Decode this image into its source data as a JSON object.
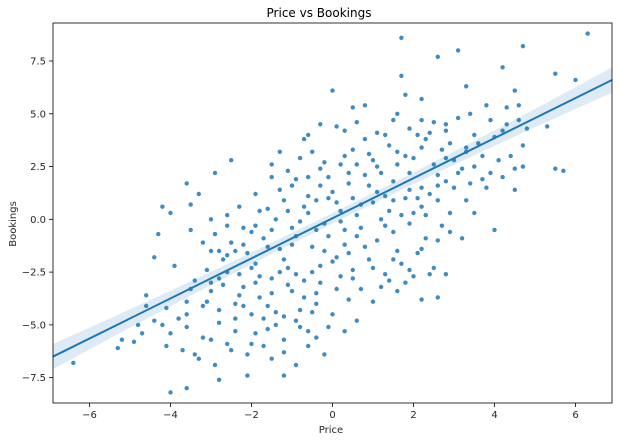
{
  "chart_data": {
    "type": "scatter",
    "title": "Price vs Bookings",
    "xlabel": "Price",
    "ylabel": "Bookings",
    "xlim": [
      -6.9,
      6.9
    ],
    "ylim": [
      -8.7,
      9.3
    ],
    "xticks": [
      -6,
      -4,
      -2,
      0,
      2,
      4,
      6
    ],
    "yticks": [
      -7.5,
      -5.0,
      -2.5,
      0.0,
      2.5,
      5.0,
      7.5
    ],
    "xtick_labels": [
      "−6",
      "−4",
      "−2",
      "0",
      "2",
      "4",
      "6"
    ],
    "ytick_labels": [
      "−7.5",
      "−5.0",
      "−2.5",
      "0.0",
      "2.5",
      "5.0",
      "7.5"
    ],
    "grid": false,
    "legend": "none",
    "colors": {
      "points": "#1f77b4",
      "line": "#1f77b4",
      "band": "#1f77b4"
    },
    "regression": {
      "x": [
        -6.9,
        6.9
      ],
      "y": [
        -6.5,
        6.6
      ],
      "ci_half_width_at_center": 0.25,
      "ci_half_width_at_edges": 0.6
    },
    "points": [
      [
        6.3,
        8.8
      ],
      [
        1.7,
        8.6
      ],
      [
        4.7,
        8.2
      ],
      [
        3.1,
        8.0
      ],
      [
        1.7,
        6.8
      ],
      [
        4.2,
        7.2
      ],
      [
        5.5,
        6.9
      ],
      [
        6.0,
        6.6
      ],
      [
        2.6,
        7.7
      ],
      [
        4.5,
        6.1
      ],
      [
        3.3,
        6.3
      ],
      [
        0.0,
        6.1
      ],
      [
        4.3,
        5.3
      ],
      [
        4.6,
        5.4
      ],
      [
        1.8,
        5.9
      ],
      [
        2.2,
        5.7
      ],
      [
        0.5,
        5.3
      ],
      [
        0.8,
        5.4
      ],
      [
        3.8,
        5.4
      ],
      [
        5.3,
        4.4
      ],
      [
        4.3,
        4.5
      ],
      [
        2.5,
        4.6
      ],
      [
        2.8,
        4.2
      ],
      [
        3.1,
        4.8
      ],
      [
        1.5,
        4.7
      ],
      [
        2.1,
        4.0
      ],
      [
        0.3,
        4.2
      ],
      [
        0.8,
        3.8
      ],
      [
        -1.3,
        3.2
      ],
      [
        -0.7,
        3.8
      ],
      [
        -0.3,
        4.5
      ],
      [
        -0.8,
        2.9
      ],
      [
        -0.3,
        2.4
      ],
      [
        0.2,
        2.6
      ],
      [
        0.5,
        3.3
      ],
      [
        1.0,
        2.8
      ],
      [
        1.4,
        3.5
      ],
      [
        1.8,
        3.0
      ],
      [
        2.3,
        3.8
      ],
      [
        2.7,
        3.3
      ],
      [
        3.3,
        3.2
      ],
      [
        3.6,
        3.6
      ],
      [
        4.0,
        3.9
      ],
      [
        4.7,
        3.5
      ],
      [
        5.7,
        2.3
      ],
      [
        5.5,
        2.4
      ],
      [
        4.7,
        2.5
      ],
      [
        4.2,
        2.0
      ],
      [
        3.7,
        1.9
      ],
      [
        3.1,
        2.2
      ],
      [
        2.6,
        2.1
      ],
      [
        2.2,
        1.5
      ],
      [
        1.9,
        2.2
      ],
      [
        1.5,
        1.8
      ],
      [
        1.1,
        1.3
      ],
      [
        0.8,
        2.1
      ],
      [
        0.4,
        1.7
      ],
      [
        0.0,
        1.3
      ],
      [
        -0.3,
        1.6
      ],
      [
        -0.6,
        1.1
      ],
      [
        -1.0,
        1.6
      ],
      [
        -1.5,
        2.0
      ],
      [
        -1.9,
        1.2
      ],
      [
        -2.3,
        0.6
      ],
      [
        -2.5,
        2.8
      ],
      [
        -2.9,
        2.2
      ],
      [
        -3.3,
        1.2
      ],
      [
        -3.6,
        1.7
      ],
      [
        -4.2,
        0.6
      ],
      [
        -4.0,
        0.3
      ],
      [
        -3.5,
        0.7
      ],
      [
        -3.0,
        0.0
      ],
      [
        -2.6,
        0.2
      ],
      [
        -2.2,
        -0.4
      ],
      [
        -1.8,
        0.4
      ],
      [
        -1.4,
        0.0
      ],
      [
        -1.0,
        -0.4
      ],
      [
        -0.6,
        0.3
      ],
      [
        -0.2,
        -0.2
      ],
      [
        0.2,
        0.4
      ],
      [
        0.6,
        0.2
      ],
      [
        1.0,
        0.8
      ],
      [
        1.4,
        0.4
      ],
      [
        1.8,
        1.0
      ],
      [
        2.2,
        0.6
      ],
      [
        2.6,
        0.9
      ],
      [
        3.0,
        1.5
      ],
      [
        3.3,
        0.9
      ],
      [
        4.0,
        -0.5
      ],
      [
        4.5,
        1.4
      ],
      [
        -2.9,
        -0.7
      ],
      [
        -2.5,
        -1.1
      ],
      [
        -2.1,
        -1.6
      ],
      [
        -1.7,
        -0.9
      ],
      [
        -1.3,
        -1.4
      ],
      [
        -0.9,
        -0.8
      ],
      [
        -0.5,
        -1.3
      ],
      [
        -0.1,
        -0.8
      ],
      [
        0.3,
        -1.2
      ],
      [
        0.7,
        -0.4
      ],
      [
        1.1,
        -1.0
      ],
      [
        1.5,
        -0.6
      ],
      [
        1.9,
        -0.2
      ],
      [
        2.3,
        -0.9
      ],
      [
        3.2,
        -0.9
      ],
      [
        -4.3,
        -0.7
      ],
      [
        -4.4,
        -1.8
      ],
      [
        -3.9,
        -2.2
      ],
      [
        -3.1,
        -2.4
      ],
      [
        -2.7,
        -1.9
      ],
      [
        -2.3,
        -2.6
      ],
      [
        -1.9,
        -2.1
      ],
      [
        -1.5,
        -2.8
      ],
      [
        -1.1,
        -2.3
      ],
      [
        -0.7,
        -2.9
      ],
      [
        -0.3,
        -2.2
      ],
      [
        0.1,
        -1.8
      ],
      [
        0.5,
        -2.4
      ],
      [
        0.9,
        -1.9
      ],
      [
        1.3,
        -2.6
      ],
      [
        1.7,
        -2.1
      ],
      [
        2.1,
        -1.6
      ],
      [
        2.5,
        -2.3
      ],
      [
        2.8,
        -2.6
      ],
      [
        -3.5,
        -3.3
      ],
      [
        -3.1,
        -3.9
      ],
      [
        -2.7,
        -3.1
      ],
      [
        -2.3,
        -3.6
      ],
      [
        -1.9,
        -3.0
      ],
      [
        -1.5,
        -3.5
      ],
      [
        -1.1,
        -3.1
      ],
      [
        -0.7,
        -3.7
      ],
      [
        -0.3,
        -3.0
      ],
      [
        0.1,
        -3.3
      ],
      [
        0.5,
        -2.8
      ],
      [
        1.2,
        -3.2
      ],
      [
        1.8,
        -3.0
      ],
      [
        2.4,
        -2.6
      ],
      [
        -4.6,
        -3.6
      ],
      [
        -4.1,
        -4.2
      ],
      [
        -3.6,
        -4.5
      ],
      [
        -3.2,
        -4.1
      ],
      [
        -2.8,
        -4.3
      ],
      [
        -2.4,
        -4.0
      ],
      [
        -2.0,
        -4.5
      ],
      [
        -1.6,
        -4.1
      ],
      [
        -1.2,
        -4.6
      ],
      [
        -0.8,
        -4.3
      ],
      [
        -0.4,
        -4.0
      ],
      [
        0.0,
        -4.5
      ],
      [
        0.4,
        -3.8
      ],
      [
        1.0,
        -3.9
      ],
      [
        1.6,
        -3.4
      ],
      [
        2.2,
        -3.8
      ],
      [
        2.6,
        -3.7
      ],
      [
        -4.4,
        -4.8
      ],
      [
        -4.0,
        -5.4
      ],
      [
        -3.6,
        -5.1
      ],
      [
        -3.2,
        -5.6
      ],
      [
        -2.8,
        -4.9
      ],
      [
        -2.4,
        -5.3
      ],
      [
        -2.0,
        -5.9
      ],
      [
        -1.6,
        -5.2
      ],
      [
        -1.2,
        -5.7
      ],
      [
        -0.8,
        -5.1
      ],
      [
        -0.4,
        -5.6
      ],
      [
        -0.1,
        -5.1
      ],
      [
        0.3,
        -5.3
      ],
      [
        -4.9,
        -5.8
      ],
      [
        -4.1,
        -6.0
      ],
      [
        -3.7,
        -6.2
      ],
      [
        -3.3,
        -6.6
      ],
      [
        -2.9,
        -6.9
      ],
      [
        -2.1,
        -6.4
      ],
      [
        -1.7,
        -6.0
      ],
      [
        -1.2,
        -6.3
      ],
      [
        -0.6,
        -6.0
      ],
      [
        -0.2,
        -6.4
      ],
      [
        -6.4,
        -6.8
      ],
      [
        -4.0,
        -8.2
      ],
      [
        -3.6,
        -8.0
      ],
      [
        -2.8,
        -7.6
      ],
      [
        -2.1,
        -7.4
      ],
      [
        -1.2,
        -7.4
      ],
      [
        -0.9,
        -6.9
      ],
      [
        -4.6,
        -4.1
      ],
      [
        -4.2,
        -5.0
      ],
      [
        -5.2,
        -5.7
      ],
      [
        -4.8,
        -5.0
      ],
      [
        -3.4,
        -6.4
      ],
      [
        -2.6,
        -5.9
      ],
      [
        -1.4,
        -5.0
      ],
      [
        -0.5,
        -4.4
      ],
      [
        0.6,
        -4.8
      ],
      [
        -1.8,
        -3.7
      ],
      [
        -2.2,
        -3.2
      ],
      [
        -3.0,
        -3.4
      ],
      [
        -3.4,
        -2.9
      ],
      [
        -0.9,
        -2.6
      ],
      [
        -0.2,
        -1.5
      ],
      [
        0.8,
        -1.3
      ],
      [
        1.6,
        -1.5
      ],
      [
        2.0,
        -2.7
      ],
      [
        -1.2,
        -1.9
      ],
      [
        -1.6,
        -1.3
      ],
      [
        -2.0,
        -2.3
      ],
      [
        -2.4,
        -1.5
      ],
      [
        -2.8,
        -2.8
      ],
      [
        -3.2,
        -1.1
      ],
      [
        0.3,
        -0.5
      ],
      [
        1.2,
        0.0
      ],
      [
        2.0,
        0.3
      ],
      [
        2.7,
        -0.3
      ],
      [
        3.5,
        0.3
      ],
      [
        -0.4,
        0.9
      ],
      [
        -0.8,
        -0.1
      ],
      [
        -1.2,
        0.9
      ],
      [
        -1.6,
        0.5
      ],
      [
        -2.0,
        -0.6
      ],
      [
        -2.6,
        -0.3
      ],
      [
        0.5,
        1.0
      ],
      [
        1.3,
        1.1
      ],
      [
        2.4,
        1.2
      ],
      [
        2.9,
        0.3
      ],
      [
        3.8,
        1.5
      ],
      [
        -0.1,
        2.0
      ],
      [
        0.6,
        2.6
      ],
      [
        1.2,
        2.2
      ],
      [
        1.6,
        2.6
      ],
      [
        2.0,
        2.9
      ],
      [
        2.5,
        2.6
      ],
      [
        3.0,
        2.8
      ],
      [
        3.5,
        2.5
      ],
      [
        4.1,
        2.8
      ],
      [
        4.5,
        2.4
      ],
      [
        -0.5,
        3.2
      ],
      [
        0.3,
        3.0
      ],
      [
        0.9,
        3.1
      ],
      [
        1.3,
        4.0
      ],
      [
        1.9,
        4.3
      ],
      [
        2.4,
        4.1
      ],
      [
        2.9,
        3.6
      ],
      [
        3.5,
        4.0
      ],
      [
        4.2,
        4.2
      ],
      [
        4.6,
        4.7
      ],
      [
        -1.5,
        2.6
      ],
      [
        -1.1,
        2.3
      ],
      [
        -0.6,
        2.0
      ],
      [
        -0.1,
        1.0
      ],
      [
        0.9,
        1.6
      ],
      [
        1.9,
        1.4
      ],
      [
        2.8,
        1.8
      ],
      [
        3.4,
        1.7
      ],
      [
        -2.4,
        -4.7
      ],
      [
        -1.9,
        -5.4
      ],
      [
        -1.4,
        -4.4
      ],
      [
        -0.9,
        -4.8
      ],
      [
        -0.6,
        -5.3
      ],
      [
        -3.8,
        -4.7
      ],
      [
        -4.7,
        -5.4
      ],
      [
        -5.3,
        -6.1
      ],
      [
        -3.0,
        -5.7
      ],
      [
        -2.5,
        -6.2
      ],
      [
        -1.5,
        -6.6
      ],
      [
        -2.2,
        -4.1
      ],
      [
        -1.7,
        -4.7
      ],
      [
        -1.0,
        -3.4
      ],
      [
        -0.4,
        -3.5
      ],
      [
        0.2,
        -2.7
      ],
      [
        0.7,
        -3.3
      ],
      [
        1.4,
        -2.9
      ],
      [
        1.9,
        -2.4
      ],
      [
        -3.6,
        -3.9
      ],
      [
        -3.0,
        -3.0
      ],
      [
        -2.6,
        -2.5
      ],
      [
        -1.8,
        -2.7
      ],
      [
        -1.3,
        -2.5
      ],
      [
        -0.5,
        -2.5
      ],
      [
        0.0,
        -2.0
      ],
      [
        0.4,
        -1.6
      ],
      [
        1.0,
        -2.3
      ],
      [
        1.5,
        -1.9
      ],
      [
        2.2,
        -1.4
      ],
      [
        2.6,
        -1.0
      ],
      [
        -2.8,
        -1.5
      ],
      [
        -2.2,
        -1.2
      ],
      [
        -1.5,
        -0.5
      ],
      [
        -1.0,
        -1.2
      ],
      [
        -0.4,
        -0.5
      ],
      [
        0.2,
        -0.1
      ],
      [
        0.6,
        -0.8
      ],
      [
        1.3,
        -0.3
      ],
      [
        1.7,
        0.2
      ],
      [
        2.3,
        0.2
      ],
      [
        2.9,
        -0.6
      ],
      [
        -3.5,
        -0.5
      ],
      [
        -3.0,
        -1.5
      ],
      [
        -2.6,
        -1.7
      ],
      [
        -1.9,
        -0.3
      ],
      [
        -1.1,
        0.4
      ],
      [
        -0.7,
        0.6
      ],
      [
        0.1,
        0.8
      ],
      [
        0.7,
        0.7
      ],
      [
        1.5,
        0.9
      ],
      [
        2.1,
        1.0
      ],
      [
        2.6,
        1.6
      ],
      [
        3.2,
        2.4
      ],
      [
        3.9,
        2.2
      ],
      [
        4.4,
        3.0
      ],
      [
        -1.3,
        1.4
      ],
      [
        -0.9,
        1.9
      ],
      [
        -0.2,
        2.7
      ],
      [
        0.4,
        2.2
      ],
      [
        1.1,
        2.5
      ],
      [
        1.6,
        3.2
      ],
      [
        2.2,
        3.4
      ],
      [
        2.8,
        2.9
      ],
      [
        3.3,
        3.4
      ],
      [
        3.7,
        3.0
      ],
      [
        -0.6,
        4.0
      ],
      [
        0.1,
        4.4
      ],
      [
        0.6,
        4.6
      ],
      [
        1.1,
        4.1
      ],
      [
        1.6,
        5.0
      ],
      [
        2.2,
        4.7
      ],
      [
        2.8,
        4.5
      ],
      [
        3.4,
        5.0
      ],
      [
        3.9,
        4.7
      ],
      [
        4.8,
        4.3
      ]
    ]
  }
}
